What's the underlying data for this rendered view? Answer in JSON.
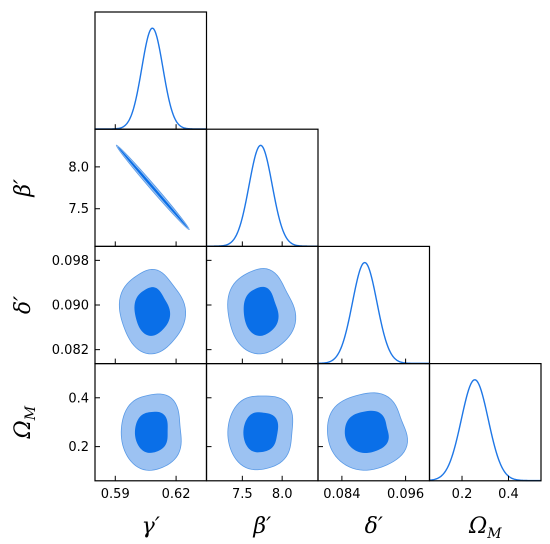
{
  "chart_data": {
    "type": "corner",
    "colors": {
      "line": "#1f77e6",
      "inner": "#0a6fe8",
      "outer": "#9cc2f2",
      "outer_edge": "#5a9ae6"
    },
    "parameters": [
      {
        "key": "gamma",
        "label": "γ′",
        "range": [
          0.58,
          0.635
        ],
        "ticks": [
          0.59,
          0.62
        ],
        "tick_labels": [
          "0.59",
          "0.62"
        ]
      },
      {
        "key": "beta",
        "label": "β′",
        "range": [
          7.05,
          8.45
        ],
        "ticks": [
          7.5,
          8.0
        ],
        "tick_labels": [
          "7.5",
          "8.0"
        ]
      },
      {
        "key": "delta",
        "label": "δ′",
        "range": [
          0.0795,
          0.1005
        ],
        "ticks": [
          0.082,
          0.09,
          0.098
        ],
        "tick_labels": [
          "0.082",
          "0.090",
          "0.098"
        ],
        "x_ticks": [
          0.084,
          0.096
        ],
        "x_tick_labels": [
          "0.084",
          "0.096"
        ]
      },
      {
        "key": "omega",
        "label": "Ω",
        "label_sub": "M",
        "range": [
          0.06,
          0.54
        ],
        "ticks": [
          0.2,
          0.4
        ],
        "tick_labels": [
          "0.2",
          "0.4"
        ]
      }
    ],
    "marginals": [
      {
        "param": "gamma",
        "mean": 0.6083,
        "sigma": 0.0052
      },
      {
        "param": "beta",
        "mean": 7.73,
        "sigma": 0.145
      },
      {
        "param": "delta",
        "mean": 0.0883,
        "sigma": 0.0023
      },
      {
        "param": "omega",
        "mean": 0.255,
        "sigma": 0.058
      }
    ],
    "panels_2d": [
      {
        "x": "gamma",
        "y": "beta",
        "shape": "degenerate",
        "start": [
          0.5905,
          8.26
        ],
        "end": [
          0.6265,
          7.25
        ]
      },
      {
        "x": "gamma",
        "y": "delta",
        "shape": "blob",
        "center": [
          0.608,
          0.0888
        ],
        "r68": [
          0.0085,
          0.0043
        ],
        "r95": [
          0.0155,
          0.0075
        ]
      },
      {
        "x": "beta",
        "y": "delta",
        "shape": "blob",
        "center": [
          7.73,
          0.0888
        ],
        "r68": [
          0.22,
          0.0043
        ],
        "r95": [
          0.42,
          0.0075
        ]
      },
      {
        "x": "delta",
        "y": "omega",
        "shape": "blob",
        "center": [
          0.0887,
          0.26
        ],
        "r68": [
          0.0043,
          0.085
        ],
        "r95": [
          0.0077,
          0.155
        ]
      },
      {
        "x": "gamma",
        "y": "omega",
        "shape": "blob",
        "center": [
          0.608,
          0.26
        ],
        "r68": [
          0.0085,
          0.085
        ],
        "r95": [
          0.0155,
          0.155
        ]
      },
      {
        "x": "beta",
        "y": "omega",
        "shape": "blob",
        "center": [
          7.73,
          0.26
        ],
        "r68": [
          0.22,
          0.085
        ],
        "r95": [
          0.42,
          0.155
        ]
      }
    ]
  }
}
